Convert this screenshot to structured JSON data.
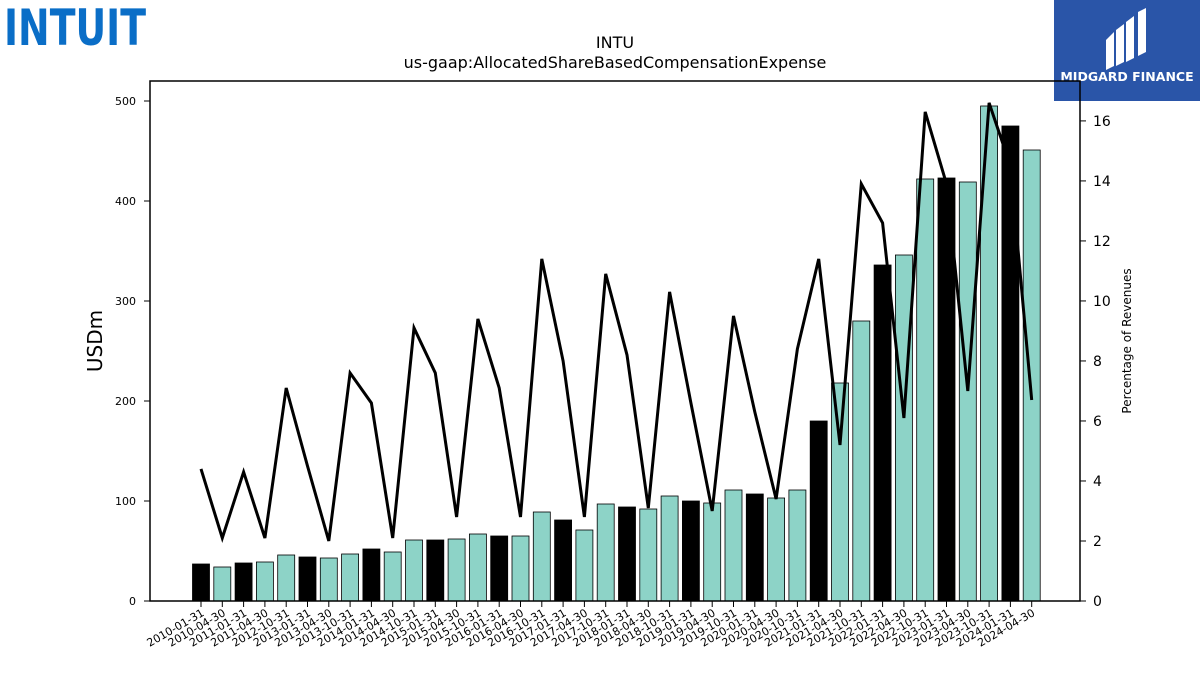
{
  "brand": {
    "company_logo_text": "INTUIT",
    "publisher_logo_text": "MIDGARD FINANCE",
    "company_color": "#0a6ec7",
    "publisher_color": "#2a55a8"
  },
  "chart_data": {
    "type": "bar",
    "title": "INTU",
    "subtitle": "us-gaap:AllocatedShareBasedCompensationExpense",
    "ylabel": "USDm",
    "y2label": "Percentage of Revenues",
    "ylim": [
      0,
      520
    ],
    "y2lim": [
      0,
      17.33
    ],
    "yticks": [
      0,
      100,
      200,
      300,
      400,
      500
    ],
    "y2ticks": [
      0,
      2,
      4,
      6,
      8,
      10,
      12,
      14,
      16
    ],
    "categories": [
      "2010-01-31",
      "2010-04-30",
      "2011-01-31",
      "2011-04-30",
      "2012-10-31",
      "2013-01-31",
      "2013-04-30",
      "2013-10-31",
      "2014-01-31",
      "2014-04-30",
      "2014-10-31",
      "2015-01-31",
      "2015-04-30",
      "2015-10-31",
      "2016-01-31",
      "2016-04-30",
      "2016-10-31",
      "2017-01-31",
      "2017-04-30",
      "2017-10-31",
      "2018-01-31",
      "2018-04-30",
      "2018-10-31",
      "2019-01-31",
      "2019-04-30",
      "2019-10-31",
      "2020-01-31",
      "2020-04-30",
      "2020-10-31",
      "2021-01-31",
      "2021-04-30",
      "2021-10-31",
      "2022-01-31",
      "2022-04-30",
      "2022-10-31",
      "2023-01-31",
      "2023-04-30",
      "2023-10-31",
      "2024-01-31",
      "2024-04-30"
    ],
    "series": [
      {
        "kind": "bar",
        "values": [
          37,
          34,
          38,
          39,
          46,
          44,
          43,
          47,
          52,
          49,
          61,
          61,
          62,
          67,
          65,
          65,
          89,
          81,
          71,
          97,
          94,
          92,
          105,
          100,
          98,
          111,
          107,
          103,
          111,
          180,
          218,
          280,
          336,
          346,
          422,
          423,
          419,
          495,
          475,
          451
        ],
        "colors": [
          "#000000",
          "#8dd3c7",
          "#000000",
          "#8dd3c7",
          "#8dd3c7",
          "#000000",
          "#8dd3c7",
          "#8dd3c7",
          "#000000",
          "#8dd3c7",
          "#8dd3c7",
          "#000000",
          "#8dd3c7",
          "#8dd3c7",
          "#000000",
          "#8dd3c7",
          "#8dd3c7",
          "#000000",
          "#8dd3c7",
          "#8dd3c7",
          "#000000",
          "#8dd3c7",
          "#8dd3c7",
          "#000000",
          "#8dd3c7",
          "#8dd3c7",
          "#000000",
          "#8dd3c7",
          "#8dd3c7",
          "#000000",
          "#8dd3c7",
          "#8dd3c7",
          "#000000",
          "#8dd3c7",
          "#8dd3c7",
          "#000000",
          "#8dd3c7",
          "#8dd3c7",
          "#000000",
          "#8dd3c7"
        ]
      },
      {
        "kind": "line",
        "axis": "right",
        "color": "#000000",
        "values": [
          4.4,
          2.1,
          4.3,
          2.1,
          7.1,
          4.5,
          2.0,
          7.6,
          6.6,
          2.1,
          9.1,
          7.6,
          2.8,
          9.4,
          7.1,
          2.8,
          11.4,
          8.0,
          2.8,
          10.9,
          8.2,
          3.1,
          10.3,
          6.6,
          3.0,
          9.5,
          6.3,
          3.4,
          8.4,
          11.4,
          5.2,
          13.9,
          12.6,
          6.1,
          16.3,
          13.9,
          7.0,
          16.6,
          14.5,
          6.7
        ]
      }
    ],
    "grid": false,
    "legend": "none"
  }
}
